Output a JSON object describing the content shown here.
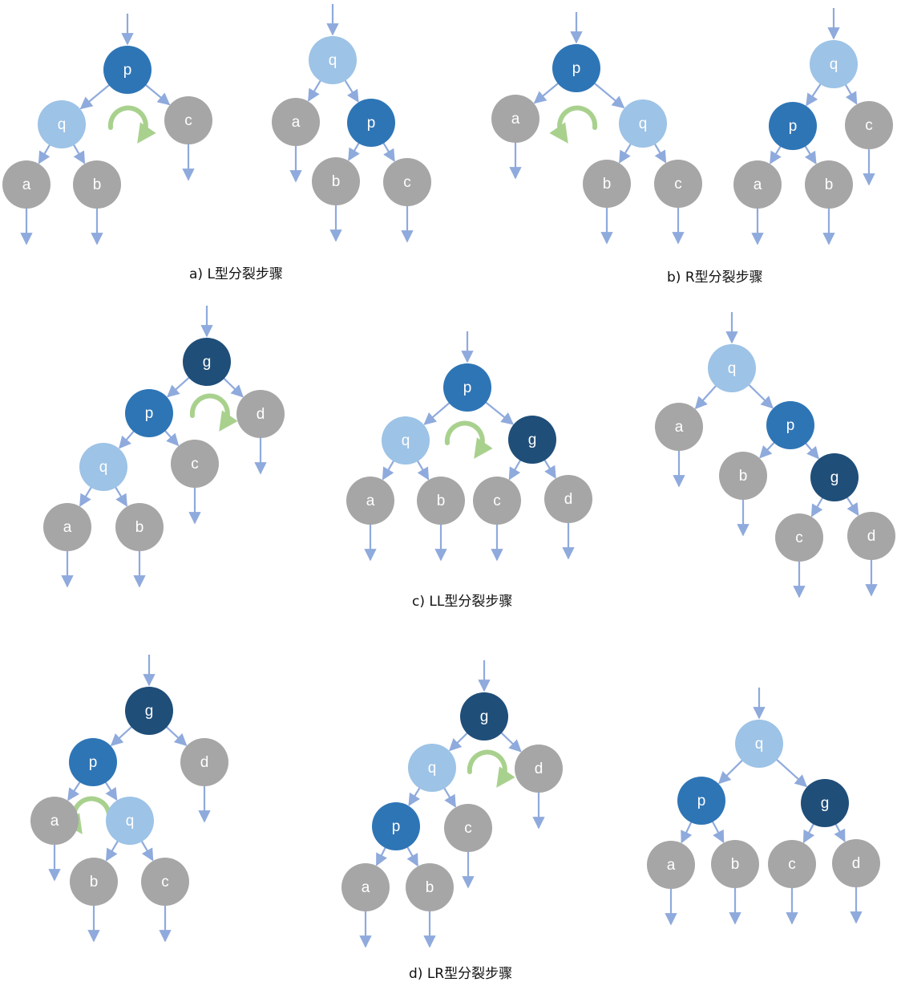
{
  "captions": {
    "a": "a) L型分裂步骤",
    "b": "b) R型分裂步骤",
    "c": "c) LL型分裂步骤",
    "d": "d) LR型分裂步骤"
  },
  "colors": {
    "q": "#9dc3e6",
    "p": "#2e75b6",
    "g": "#1f4e79",
    "leaf": "#a6a6a6",
    "edge": "#8faadc",
    "rotate": "#a9d18e"
  },
  "diagrams": [
    {
      "id": "a-before",
      "nodes": [
        {
          "id": "p",
          "label": "p",
          "kind": "p"
        },
        {
          "id": "q",
          "label": "q",
          "kind": "q"
        },
        {
          "id": "c",
          "label": "c",
          "kind": "leaf"
        },
        {
          "id": "a",
          "label": "a",
          "kind": "leaf"
        },
        {
          "id": "b",
          "label": "b",
          "kind": "leaf"
        }
      ],
      "edges": [
        [
          "p",
          "q"
        ],
        [
          "p",
          "c"
        ],
        [
          "q",
          "a"
        ],
        [
          "q",
          "b"
        ]
      ],
      "rotation": "clockwise"
    },
    {
      "id": "a-after",
      "nodes": [
        {
          "id": "q",
          "label": "q",
          "kind": "q"
        },
        {
          "id": "a",
          "label": "a",
          "kind": "leaf"
        },
        {
          "id": "p",
          "label": "p",
          "kind": "p"
        },
        {
          "id": "b",
          "label": "b",
          "kind": "leaf"
        },
        {
          "id": "c",
          "label": "c",
          "kind": "leaf"
        }
      ],
      "edges": [
        [
          "q",
          "a"
        ],
        [
          "q",
          "p"
        ],
        [
          "p",
          "b"
        ],
        [
          "p",
          "c"
        ]
      ]
    },
    {
      "id": "b-before",
      "nodes": [
        {
          "id": "p",
          "label": "p",
          "kind": "p"
        },
        {
          "id": "a",
          "label": "a",
          "kind": "leaf"
        },
        {
          "id": "q",
          "label": "q",
          "kind": "q"
        },
        {
          "id": "b",
          "label": "b",
          "kind": "leaf"
        },
        {
          "id": "c",
          "label": "c",
          "kind": "leaf"
        }
      ],
      "edges": [
        [
          "p",
          "a"
        ],
        [
          "p",
          "q"
        ],
        [
          "q",
          "b"
        ],
        [
          "q",
          "c"
        ]
      ],
      "rotation": "counterclockwise"
    },
    {
      "id": "b-after",
      "nodes": [
        {
          "id": "q",
          "label": "q",
          "kind": "q"
        },
        {
          "id": "p",
          "label": "p",
          "kind": "p"
        },
        {
          "id": "c",
          "label": "c",
          "kind": "leaf"
        },
        {
          "id": "a",
          "label": "a",
          "kind": "leaf"
        },
        {
          "id": "b",
          "label": "b",
          "kind": "leaf"
        }
      ],
      "edges": [
        [
          "q",
          "p"
        ],
        [
          "q",
          "c"
        ],
        [
          "p",
          "a"
        ],
        [
          "p",
          "b"
        ]
      ]
    },
    {
      "id": "c-step1",
      "nodes": [
        {
          "id": "g",
          "label": "g",
          "kind": "g"
        },
        {
          "id": "p",
          "label": "p",
          "kind": "p"
        },
        {
          "id": "d",
          "label": "d",
          "kind": "leaf"
        },
        {
          "id": "q",
          "label": "q",
          "kind": "q"
        },
        {
          "id": "c",
          "label": "c",
          "kind": "leaf"
        },
        {
          "id": "a",
          "label": "a",
          "kind": "leaf"
        },
        {
          "id": "b",
          "label": "b",
          "kind": "leaf"
        }
      ],
      "edges": [
        [
          "g",
          "p"
        ],
        [
          "g",
          "d"
        ],
        [
          "p",
          "q"
        ],
        [
          "p",
          "c"
        ],
        [
          "q",
          "a"
        ],
        [
          "q",
          "b"
        ]
      ],
      "rotation": "clockwise"
    },
    {
      "id": "c-step2",
      "nodes": [
        {
          "id": "p",
          "label": "p",
          "kind": "p"
        },
        {
          "id": "q",
          "label": "q",
          "kind": "q"
        },
        {
          "id": "g",
          "label": "g",
          "kind": "g"
        },
        {
          "id": "a",
          "label": "a",
          "kind": "leaf"
        },
        {
          "id": "b",
          "label": "b",
          "kind": "leaf"
        },
        {
          "id": "c",
          "label": "c",
          "kind": "leaf"
        },
        {
          "id": "d",
          "label": "d",
          "kind": "leaf"
        }
      ],
      "edges": [
        [
          "p",
          "q"
        ],
        [
          "p",
          "g"
        ],
        [
          "q",
          "a"
        ],
        [
          "q",
          "b"
        ],
        [
          "g",
          "c"
        ],
        [
          "g",
          "d"
        ]
      ],
      "rotation": "clockwise"
    },
    {
      "id": "c-step3",
      "nodes": [
        {
          "id": "q",
          "label": "q",
          "kind": "q"
        },
        {
          "id": "a",
          "label": "a",
          "kind": "leaf"
        },
        {
          "id": "p",
          "label": "p",
          "kind": "p"
        },
        {
          "id": "b",
          "label": "b",
          "kind": "leaf"
        },
        {
          "id": "g",
          "label": "g",
          "kind": "g"
        },
        {
          "id": "c",
          "label": "c",
          "kind": "leaf"
        },
        {
          "id": "d",
          "label": "d",
          "kind": "leaf"
        }
      ],
      "edges": [
        [
          "q",
          "a"
        ],
        [
          "q",
          "p"
        ],
        [
          "p",
          "b"
        ],
        [
          "p",
          "g"
        ],
        [
          "g",
          "c"
        ],
        [
          "g",
          "d"
        ]
      ]
    },
    {
      "id": "d-step1",
      "nodes": [
        {
          "id": "g",
          "label": "g",
          "kind": "g"
        },
        {
          "id": "p",
          "label": "p",
          "kind": "p"
        },
        {
          "id": "d",
          "label": "d",
          "kind": "leaf"
        },
        {
          "id": "a",
          "label": "a",
          "kind": "leaf"
        },
        {
          "id": "q",
          "label": "q",
          "kind": "q"
        },
        {
          "id": "b",
          "label": "b",
          "kind": "leaf"
        },
        {
          "id": "c",
          "label": "c",
          "kind": "leaf"
        }
      ],
      "edges": [
        [
          "g",
          "p"
        ],
        [
          "g",
          "d"
        ],
        [
          "p",
          "a"
        ],
        [
          "p",
          "q"
        ],
        [
          "q",
          "b"
        ],
        [
          "q",
          "c"
        ]
      ],
      "rotation": "counterclockwise"
    },
    {
      "id": "d-step2",
      "nodes": [
        {
          "id": "g",
          "label": "g",
          "kind": "g"
        },
        {
          "id": "q",
          "label": "q",
          "kind": "q"
        },
        {
          "id": "d",
          "label": "d",
          "kind": "leaf"
        },
        {
          "id": "p",
          "label": "p",
          "kind": "p"
        },
        {
          "id": "c",
          "label": "c",
          "kind": "leaf"
        },
        {
          "id": "a",
          "label": "a",
          "kind": "leaf"
        },
        {
          "id": "b",
          "label": "b",
          "kind": "leaf"
        }
      ],
      "edges": [
        [
          "g",
          "q"
        ],
        [
          "g",
          "d"
        ],
        [
          "q",
          "p"
        ],
        [
          "q",
          "c"
        ],
        [
          "p",
          "a"
        ],
        [
          "p",
          "b"
        ]
      ],
      "rotation": "clockwise"
    },
    {
      "id": "d-step3",
      "nodes": [
        {
          "id": "q",
          "label": "q",
          "kind": "q"
        },
        {
          "id": "p",
          "label": "p",
          "kind": "p"
        },
        {
          "id": "g",
          "label": "g",
          "kind": "g"
        },
        {
          "id": "a",
          "label": "a",
          "kind": "leaf"
        },
        {
          "id": "b",
          "label": "b",
          "kind": "leaf"
        },
        {
          "id": "c",
          "label": "c",
          "kind": "leaf"
        },
        {
          "id": "d",
          "label": "d",
          "kind": "leaf"
        }
      ],
      "edges": [
        [
          "q",
          "p"
        ],
        [
          "q",
          "g"
        ],
        [
          "p",
          "a"
        ],
        [
          "p",
          "b"
        ],
        [
          "g",
          "c"
        ],
        [
          "g",
          "d"
        ]
      ]
    }
  ]
}
